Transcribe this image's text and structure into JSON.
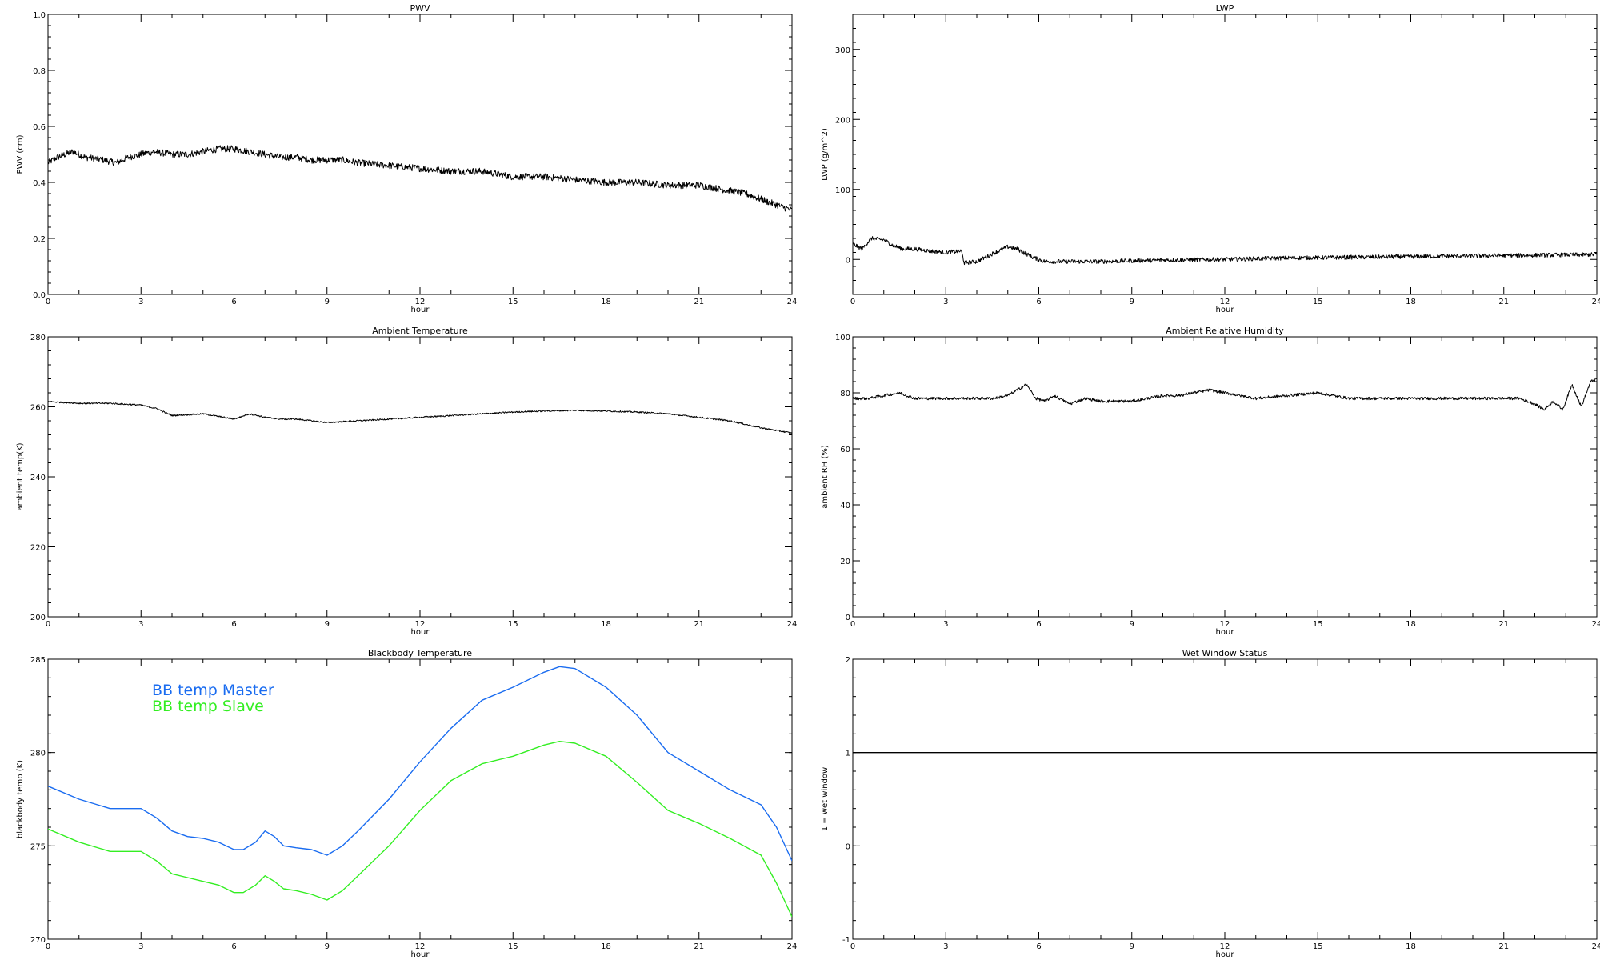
{
  "chart_data": [
    {
      "type": "line",
      "title": "PWV",
      "xlabel": "hour",
      "ylabel": "PWV (cm)",
      "xlim": [
        0,
        24
      ],
      "ylim": [
        0,
        1.0
      ],
      "xticks": [
        "0",
        "3",
        "6",
        "9",
        "12",
        "15",
        "18",
        "21",
        "24"
      ],
      "yticks": [
        "0.0",
        "0.2",
        "0.4",
        "0.6",
        "0.8",
        "1.0"
      ],
      "grid": false,
      "series": [
        {
          "color": "#000000",
          "noisy": true,
          "noise": 0.012,
          "x": [
            0,
            0.3,
            0.8,
            1.2,
            1.8,
            2.2,
            2.6,
            3.0,
            3.4,
            4.0,
            4.5,
            5.0,
            5.5,
            6.0,
            6.5,
            7.0,
            7.5,
            8.0,
            8.5,
            9.0,
            9.5,
            10.0,
            11.0,
            12.0,
            13.0,
            14.0,
            15.0,
            16.0,
            17.0,
            18.0,
            19.0,
            20.0,
            21.0,
            22.0,
            22.5,
            23.0,
            23.5,
            24.0
          ],
          "y": [
            0.47,
            0.49,
            0.51,
            0.49,
            0.48,
            0.47,
            0.49,
            0.5,
            0.51,
            0.5,
            0.5,
            0.51,
            0.52,
            0.52,
            0.51,
            0.5,
            0.49,
            0.49,
            0.48,
            0.48,
            0.48,
            0.47,
            0.46,
            0.45,
            0.44,
            0.44,
            0.42,
            0.42,
            0.41,
            0.4,
            0.4,
            0.39,
            0.39,
            0.37,
            0.36,
            0.34,
            0.32,
            0.3
          ]
        }
      ]
    },
    {
      "type": "line",
      "title": "LWP",
      "xlabel": "hour",
      "ylabel": "LWP (g/m^2)",
      "xlim": [
        0,
        24
      ],
      "ylim": [
        -50,
        350
      ],
      "xticks": [
        "0",
        "3",
        "6",
        "9",
        "12",
        "15",
        "18",
        "21",
        "24"
      ],
      "yticks": [
        "0",
        "100",
        "200",
        "300"
      ],
      "grid": false,
      "series": [
        {
          "color": "#000000",
          "noisy": true,
          "noise": 3,
          "x": [
            0,
            0.3,
            0.6,
            1.0,
            1.3,
            1.6,
            2.0,
            2.5,
            3.0,
            3.5,
            3.6,
            4.0,
            4.5,
            5.0,
            5.3,
            5.8,
            6.2,
            7.0,
            8.0,
            9.0,
            10.0,
            12.0,
            14.0,
            16.0,
            18.0,
            20.0,
            22.0,
            24.0
          ],
          "y": [
            22,
            15,
            30,
            28,
            20,
            15,
            15,
            12,
            10,
            12,
            -5,
            -3,
            8,
            18,
            15,
            3,
            -3,
            -3,
            -3,
            -2,
            -1,
            0,
            2,
            3,
            4,
            5,
            6,
            7
          ]
        }
      ]
    },
    {
      "type": "line",
      "title": "Ambient Temperature",
      "xlabel": "hour",
      "ylabel": "ambient temp(K)",
      "xlim": [
        0,
        24
      ],
      "ylim": [
        200,
        280
      ],
      "xticks": [
        "0",
        "3",
        "6",
        "9",
        "12",
        "15",
        "18",
        "21",
        "24"
      ],
      "yticks": [
        "200",
        "220",
        "240",
        "260",
        "280"
      ],
      "grid": false,
      "series": [
        {
          "color": "#000000",
          "noisy": true,
          "noise": 0.2,
          "x": [
            0,
            1,
            2,
            3,
            3.5,
            4,
            5,
            6,
            6.5,
            7,
            7.5,
            8,
            8.5,
            9,
            10,
            11,
            12,
            13,
            14,
            15,
            16,
            17,
            18,
            19,
            20,
            21,
            22,
            23,
            24
          ],
          "y": [
            261.5,
            261,
            261,
            260.5,
            259.5,
            257.5,
            258,
            256.5,
            258,
            257,
            256.5,
            256.5,
            256,
            255.5,
            256,
            256.5,
            257,
            257.5,
            258,
            258.5,
            258.8,
            259,
            258.8,
            258.5,
            258,
            257,
            256,
            254,
            252.5
          ]
        }
      ]
    },
    {
      "type": "line",
      "title": "Ambient Relative Humidity",
      "xlabel": "hour",
      "ylabel": "ambient RH (%)",
      "xlim": [
        0,
        24
      ],
      "ylim": [
        0,
        100
      ],
      "xticks": [
        "0",
        "3",
        "6",
        "9",
        "12",
        "15",
        "18",
        "21",
        "24"
      ],
      "yticks": [
        "0",
        "20",
        "40",
        "60",
        "80",
        "100"
      ],
      "grid": false,
      "series": [
        {
          "color": "#000000",
          "noisy": true,
          "noise": 0.5,
          "x": [
            0,
            0.5,
            1,
            1.5,
            2,
            2.5,
            3,
            3.5,
            4,
            4.5,
            5,
            5.3,
            5.6,
            5.9,
            6.2,
            6.5,
            7,
            7.5,
            8,
            8.5,
            9,
            9.5,
            10,
            10.5,
            11,
            11.5,
            12,
            13,
            14,
            15,
            16,
            17,
            18,
            19,
            20,
            20.5,
            21,
            21.5,
            22,
            22.3,
            22.6,
            22.9,
            23.2,
            23.5,
            23.8,
            24
          ],
          "y": [
            78,
            78,
            79,
            80,
            78,
            78,
            78,
            78,
            78,
            78,
            79,
            81,
            83,
            78,
            77,
            79,
            76,
            78,
            77,
            77,
            77,
            78,
            79,
            79,
            80,
            81,
            80,
            78,
            79,
            80,
            78,
            78,
            78,
            78,
            78,
            78,
            78,
            78,
            76,
            74,
            77,
            74,
            83,
            75,
            84,
            85
          ]
        }
      ]
    },
    {
      "type": "line",
      "title": "Blackbody Temperature",
      "xlabel": "hour",
      "ylabel": "blackbody temp (K)",
      "xlim": [
        0,
        24
      ],
      "ylim": [
        270,
        285
      ],
      "xticks": [
        "0",
        "3",
        "6",
        "9",
        "12",
        "15",
        "18",
        "21",
        "24"
      ],
      "yticks": [
        "270",
        "275",
        "280",
        "285"
      ],
      "grid": false,
      "legend_position": "top-left",
      "series": [
        {
          "name": "BB temp Master",
          "color": "#1a6cf0",
          "noisy": false,
          "noise": 0,
          "x": [
            0,
            1,
            2,
            3,
            3.5,
            4,
            4.5,
            5,
            5.5,
            6,
            6.3,
            6.7,
            7,
            7.3,
            7.6,
            8,
            8.5,
            9,
            9.5,
            10,
            11,
            12,
            13,
            14,
            15,
            16,
            16.5,
            17,
            18,
            19,
            20,
            21,
            22,
            23,
            23.5,
            24
          ],
          "y": [
            278.2,
            277.5,
            277.0,
            277.0,
            276.5,
            275.8,
            275.5,
            275.4,
            275.2,
            274.8,
            274.8,
            275.2,
            275.8,
            275.5,
            275.0,
            274.9,
            274.8,
            274.5,
            275.0,
            275.8,
            277.5,
            279.5,
            281.3,
            282.8,
            283.5,
            284.3,
            284.6,
            284.5,
            283.5,
            282.0,
            280.0,
            279.0,
            278.0,
            277.2,
            276.0,
            274.2
          ]
        },
        {
          "name": "BB temp Slave",
          "color": "#33ee22",
          "noisy": false,
          "noise": 0,
          "x": [
            0,
            1,
            2,
            3,
            3.5,
            4,
            4.5,
            5,
            5.5,
            6,
            6.3,
            6.7,
            7,
            7.3,
            7.6,
            8,
            8.5,
            9,
            9.5,
            10,
            11,
            12,
            13,
            14,
            15,
            16,
            16.5,
            17,
            18,
            19,
            20,
            21,
            22,
            23,
            23.5,
            24
          ],
          "y": [
            275.9,
            275.2,
            274.7,
            274.7,
            274.2,
            273.5,
            273.3,
            273.1,
            272.9,
            272.5,
            272.5,
            272.9,
            273.4,
            273.1,
            272.7,
            272.6,
            272.4,
            272.1,
            272.6,
            273.4,
            275.0,
            276.9,
            278.5,
            279.4,
            279.8,
            280.4,
            280.6,
            280.5,
            279.8,
            278.4,
            276.9,
            276.2,
            275.4,
            274.5,
            273.0,
            271.2
          ]
        }
      ]
    },
    {
      "type": "line",
      "title": "Wet Window Status",
      "xlabel": "hour",
      "ylabel": "1 = wet window",
      "xlim": [
        0,
        24
      ],
      "ylim": [
        -1,
        2
      ],
      "xticks": [
        "0",
        "3",
        "6",
        "9",
        "12",
        "15",
        "18",
        "21",
        "24"
      ],
      "yticks": [
        "-1",
        "0",
        "1",
        "2"
      ],
      "grid": false,
      "series": [
        {
          "color": "#000000",
          "noisy": false,
          "noise": 0,
          "x": [
            0,
            24
          ],
          "y": [
            1,
            1
          ]
        }
      ]
    }
  ]
}
